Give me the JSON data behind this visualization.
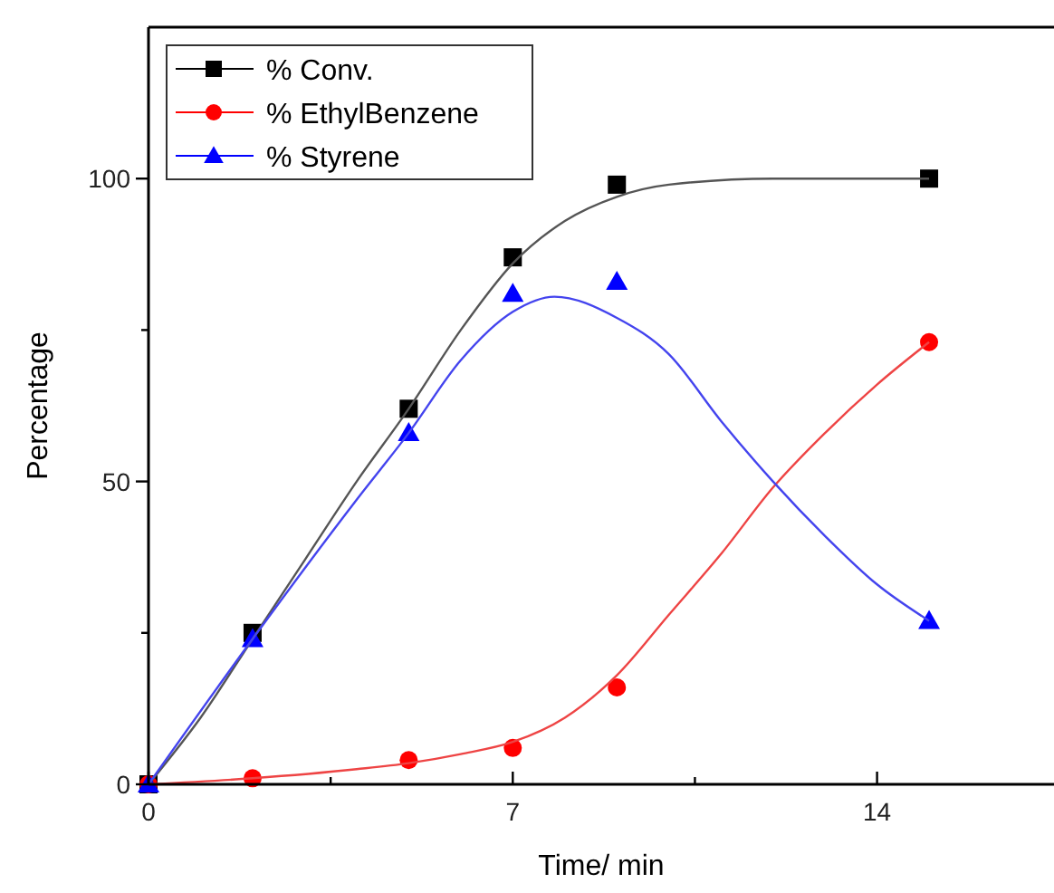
{
  "chart_data": {
    "type": "scatter",
    "xlabel": "Time/ min",
    "ylabel": "Percentage",
    "xlim": [
      0,
      17.4
    ],
    "ylim": [
      0,
      125
    ],
    "xticks": [
      0,
      {
        "value": 3.5,
        "label": null
      },
      7,
      {
        "value": 10.5,
        "label": null
      },
      14
    ],
    "yticks": [
      0,
      {
        "value": 25,
        "label": null
      },
      50,
      {
        "value": 75,
        "label": null
      },
      100
    ],
    "grid": false,
    "legend": "top left",
    "series": [
      {
        "name": "% Conv.",
        "marker": "square",
        "color": "#000000",
        "x": [
          0,
          2,
          5,
          7,
          9,
          15
        ],
        "values": [
          0,
          25,
          62,
          87,
          99,
          100
        ]
      },
      {
        "name": "% EthylBenzene",
        "marker": "circle",
        "color": "#ff0000",
        "x": [
          0,
          2,
          5,
          7,
          9,
          15
        ],
        "values": [
          0,
          1,
          4,
          6,
          16,
          73
        ]
      },
      {
        "name": "% Styrene",
        "marker": "triangle",
        "color": "#0000ff",
        "x": [
          0,
          2,
          5,
          7,
          9,
          15
        ],
        "values": [
          0,
          24,
          58,
          81,
          83,
          27
        ]
      },
      {
        "type": "line",
        "marker": "none",
        "color": "#555555",
        "x": [
          0,
          1,
          2,
          3,
          4,
          5,
          6,
          7,
          8,
          9,
          10,
          12,
          15
        ],
        "values": [
          0,
          11,
          24,
          37,
          50,
          62,
          75,
          86,
          93,
          97,
          99,
          100,
          100
        ]
      },
      {
        "type": "line",
        "marker": "none",
        "color": "#ee4444",
        "x": [
          0,
          2,
          4,
          5,
          6,
          7,
          8,
          9,
          10,
          11,
          12,
          13,
          14,
          15
        ],
        "values": [
          0,
          1,
          2.5,
          3.5,
          5,
          7,
          11,
          18,
          28,
          38,
          49,
          58,
          66,
          73
        ]
      },
      {
        "type": "line",
        "marker": "none",
        "color": "#4444ee",
        "x": [
          0,
          2,
          4,
          5,
          6,
          7,
          7.8,
          9,
          10,
          11,
          12,
          13,
          14,
          15
        ],
        "values": [
          0,
          24,
          47,
          58,
          70,
          78,
          80.5,
          77,
          71,
          60,
          50,
          41,
          33,
          27
        ]
      }
    ]
  }
}
